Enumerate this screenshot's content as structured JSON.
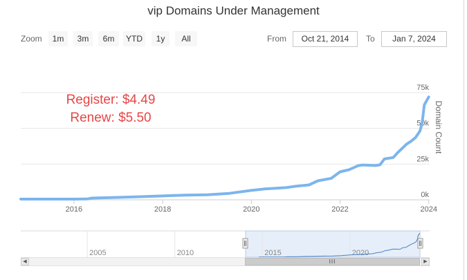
{
  "title": "vip Domains Under Management",
  "range_selector": {
    "zoom_label": "Zoom",
    "buttons": [
      "1m",
      "3m",
      "6m",
      "YTD",
      "1y",
      "All"
    ],
    "from_label": "From",
    "from_value": "Oct 21, 2014",
    "to_label": "To",
    "to_value": "Jan 7, 2024"
  },
  "annotation": {
    "line1": "Register: $4.49",
    "line2": "Renew: $5.50",
    "color": "#e64545"
  },
  "colors": {
    "series": "#7cb5ec",
    "navigator_mask": "#e6eef9"
  },
  "navigator": {
    "x_ticks": [
      "2005",
      "2010",
      "2015",
      "2020"
    ],
    "scroll_left_icon": "arrow-left-icon",
    "scroll_right_icon": "arrow-right-icon",
    "grip_icon": "grip-icon"
  },
  "chart_data": {
    "type": "line",
    "y_axis_title": "Domain Count",
    "y_ticks": [
      "0k",
      "25k",
      "50k",
      "75k"
    ],
    "x_ticks": [
      "2016",
      "2018",
      "2020",
      "2022",
      "2024"
    ],
    "xlim": [
      2014.8,
      2024.02
    ],
    "ylim": [
      0,
      75000
    ],
    "y_axis_position": "right",
    "grid": "horizontal",
    "series": [
      {
        "x": [
          2014.8,
          2015.5,
          2016.0,
          2016.3,
          2016.4,
          2017.0,
          2017.5,
          2018.0,
          2018.5,
          2019.0,
          2019.5,
          2020.0,
          2020.3,
          2020.5,
          2020.8,
          2021.0,
          2021.3,
          2021.5,
          2021.8,
          2022.0,
          2022.2,
          2022.4,
          2022.5,
          2022.8,
          2022.9,
          2023.0,
          2023.2,
          2023.3,
          2023.5,
          2023.6,
          2023.7,
          2023.8,
          2023.85,
          2023.9,
          2024.0
        ],
        "y": [
          500,
          500,
          500,
          600,
          1200,
          1700,
          2200,
          2700,
          3300,
          3500,
          4500,
          6600,
          7600,
          8000,
          8600,
          9500,
          10400,
          13300,
          15000,
          19600,
          21000,
          23800,
          24400,
          24000,
          24500,
          28600,
          29600,
          33000,
          39000,
          41000,
          43500,
          48000,
          53500,
          66500,
          72000
        ]
      }
    ]
  }
}
